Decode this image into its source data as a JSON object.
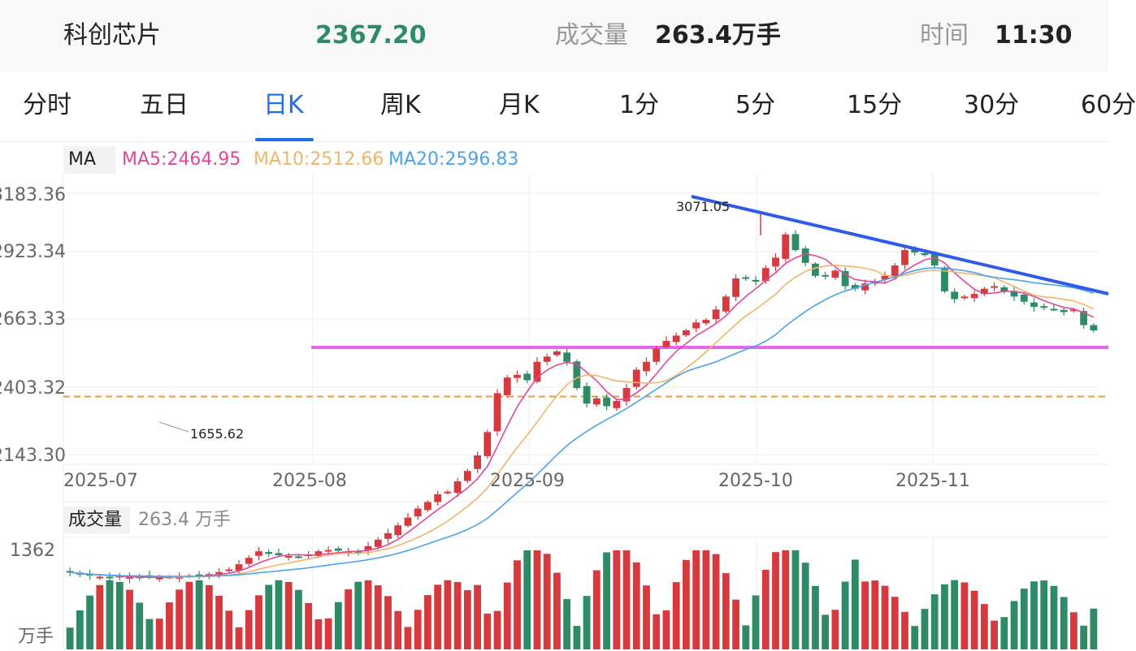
{
  "header": {
    "name": "科创芯片",
    "price": "2367.20",
    "volume_label": "成交量",
    "volume_value": "263.4万手",
    "time_label": "时间",
    "time_value": "11:30"
  },
  "tabs": [
    {
      "label": "分时",
      "active": false
    },
    {
      "label": "五日",
      "active": false
    },
    {
      "label": "日K",
      "active": true
    },
    {
      "label": "周K",
      "active": false
    },
    {
      "label": "月K",
      "active": false
    },
    {
      "label": "1分",
      "active": false
    },
    {
      "label": "5分",
      "active": false
    },
    {
      "label": "15分",
      "active": false
    },
    {
      "label": "30分",
      "active": false
    },
    {
      "label": "60分",
      "active": false
    }
  ],
  "ma": {
    "label": "MA",
    "ma5": "MA5:2464.95",
    "ma10": "MA10:2512.66",
    "ma20": "MA20:2596.83"
  },
  "price_axis": {
    "ticks": [
      "3183.36",
      "2923.34",
      "2663.33",
      "2403.32",
      "2143.30"
    ],
    "high_label": "3071.05",
    "low_label": "1655.62"
  },
  "date_axis": [
    "2025-07",
    "2025-08",
    "2025-09",
    "2025-10",
    "2025-11"
  ],
  "volume_panel": {
    "label": "成交量",
    "value": "263.4 万手",
    "axis_top": "1362",
    "axis_unit": "万手"
  },
  "colors": {
    "up": "#d63a3f",
    "down": "#2e8b66",
    "ma5": "#e0479a",
    "ma10": "#f0b56a",
    "ma20": "#4aa3f0",
    "trendline": "#2f5be6",
    "support": "#e865e8",
    "last_price": "#e69b3f"
  },
  "chart_data": {
    "type": "candlestick",
    "x_labels": [
      "2025-07",
      "2025-08",
      "2025-09",
      "2025-10",
      "2025-11"
    ],
    "price_ticks": [
      2143.3,
      2403.32,
      2663.33,
      2923.34,
      3183.36
    ],
    "ma_values": {
      "MA5": 2464.95,
      "MA10": 2512.66,
      "MA20": 2596.83
    },
    "last_price": 2367.2,
    "max_high": 3071.05,
    "min_low": 1655.62,
    "volume_max": 1362,
    "closes": [
      1689,
      1680,
      1676,
      1672,
      1670,
      1669,
      1671,
      1670,
      1668,
      1668,
      1672,
      1675,
      1676,
      1678,
      1682,
      1690,
      1700,
      1720,
      1745,
      1770,
      1760,
      1755,
      1752,
      1748,
      1758,
      1770,
      1775,
      1772,
      1768,
      1765,
      1790,
      1815,
      1840,
      1870,
      1900,
      1935,
      1960,
      1990,
      2000,
      2040,
      2080,
      2140,
      2230,
      2380,
      2440,
      2450,
      2430,
      2500,
      2520,
      2540,
      2500,
      2400,
      2340,
      2360,
      2330,
      2350,
      2400,
      2470,
      2500,
      2550,
      2580,
      2600,
      2620,
      2650,
      2660,
      2700,
      2750,
      2820,
      2820,
      2810,
      2860,
      2900,
      3000,
      2930,
      2880,
      2830,
      2830,
      2850,
      2790,
      2780,
      2800,
      2810,
      2830,
      2870,
      2930,
      2920,
      2910,
      2870,
      2770,
      2740,
      2750,
      2760,
      2780,
      2790,
      2770,
      2750,
      2730,
      2710,
      2710,
      2700,
      2690,
      2700,
      2640,
      2620
    ]
  }
}
